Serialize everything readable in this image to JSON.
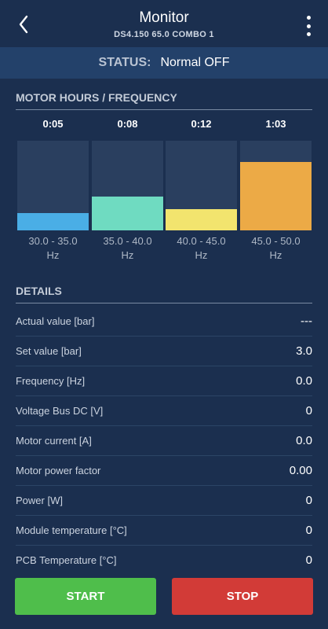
{
  "header": {
    "title": "Monitor",
    "subtitle": "DS4.150 65.0 COMBO 1",
    "back_icon": "chevron-left-icon",
    "menu_icon": "more-vertical-icon"
  },
  "status": {
    "label": "STATUS:",
    "value": "Normal OFF"
  },
  "motor_hours": {
    "title": "MOTOR HOURS / FREQUENCY",
    "bars": [
      {
        "time": "0:05",
        "range": "30.0 - 35.0",
        "unit": "Hz",
        "color": "#4aaee6",
        "level": 0.19
      },
      {
        "time": "0:08",
        "range": "35.0 - 40.0",
        "unit": "Hz",
        "color": "#6fdbc1",
        "level": 0.38
      },
      {
        "time": "0:12",
        "range": "40.0 - 45.0",
        "unit": "Hz",
        "color": "#f2e46e",
        "level": 0.24
      },
      {
        "time": "1:03",
        "range": "45.0 - 50.0",
        "unit": "Hz",
        "color": "#ecaa46",
        "level": 0.76
      }
    ]
  },
  "details": {
    "title": "DETAILS",
    "rows": [
      {
        "label": "Actual value [bar]",
        "value": "---"
      },
      {
        "label": "Set value [bar]",
        "value": "3.0"
      },
      {
        "label": "Frequency [Hz]",
        "value": "0.0"
      },
      {
        "label": "Voltage Bus DC [V]",
        "value": "0"
      },
      {
        "label": "Motor current [A]",
        "value": "0.0"
      },
      {
        "label": "Motor power factor",
        "value": "0.00"
      },
      {
        "label": "Power [W]",
        "value": "0"
      },
      {
        "label": "Module temperature [°C]",
        "value": "0"
      },
      {
        "label": "PCB Temperature [°C]",
        "value": "0"
      }
    ]
  },
  "actions": {
    "start_label": "START",
    "stop_label": "STOP"
  }
}
